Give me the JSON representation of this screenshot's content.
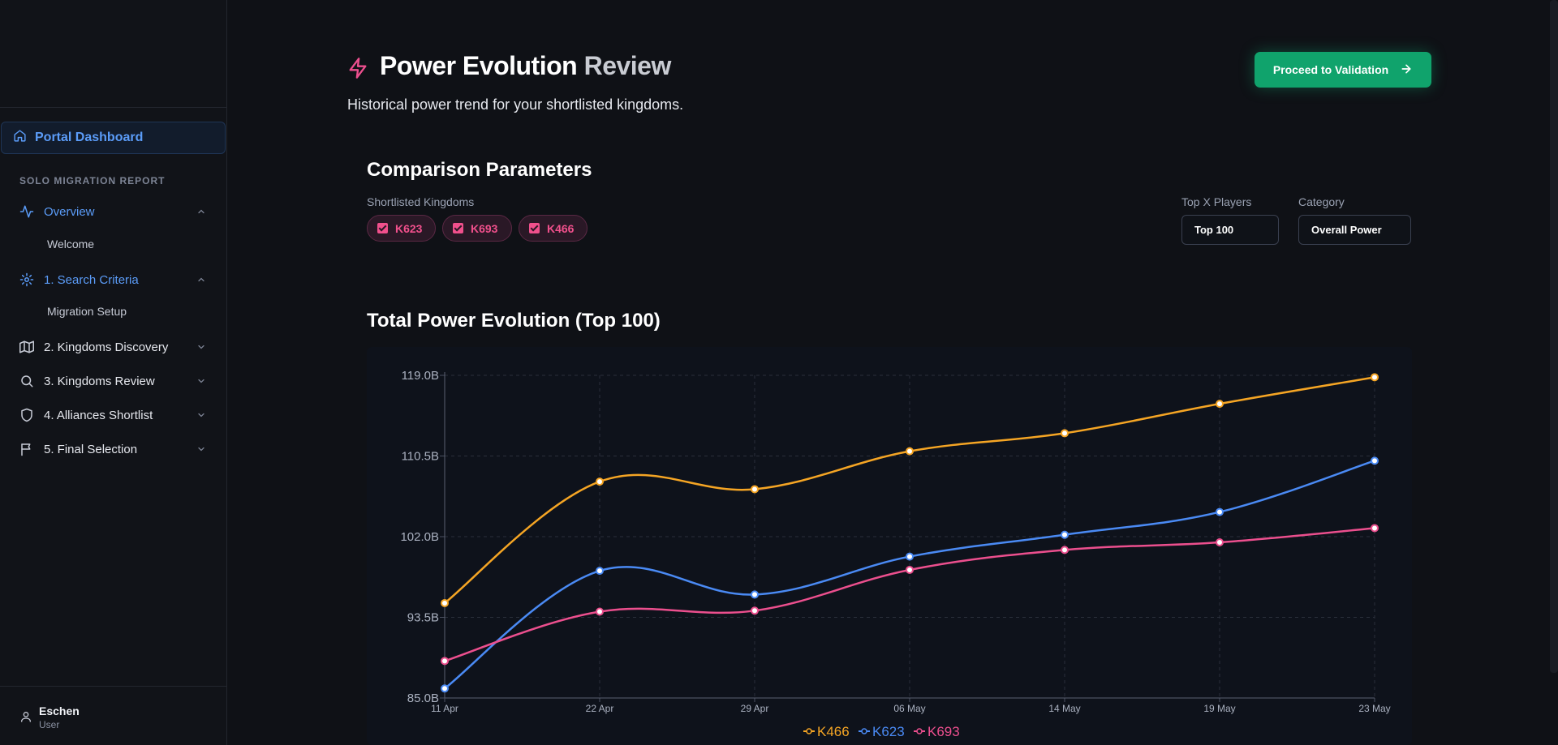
{
  "sidebar": {
    "portal_label": "Portal Dashboard",
    "section_label": "SOLO MIGRATION REPORT",
    "items": [
      {
        "label": "Overview",
        "sub": "Welcome"
      },
      {
        "label": "1. Search Criteria",
        "sub": "Migration Setup"
      },
      {
        "label": "2. Kingdoms Discovery"
      },
      {
        "label": "3. Kingdoms Review"
      },
      {
        "label": "4. Alliances Shortlist"
      },
      {
        "label": "5. Final Selection"
      }
    ],
    "user": {
      "name": "Eschen",
      "role": "User"
    }
  },
  "header": {
    "title_part1": "Power Evolution",
    "title_part2": "Review",
    "subtitle": "Historical power trend for your shortlisted kingdoms.",
    "cta_label": "Proceed to Validation"
  },
  "params": {
    "title": "Comparison Parameters",
    "shortlist_label": "Shortlisted Kingdoms",
    "chips": [
      "K623",
      "K693",
      "K466"
    ],
    "top_label": "Top X Players",
    "top_value": "Top 100",
    "category_label": "Category",
    "category_value": "Overall Power"
  },
  "colors": {
    "accent": "#5b9cf8",
    "cta": "#10a36c",
    "k466": "#f5a524",
    "k623": "#4a8af4",
    "k693": "#ec4f8e"
  },
  "chart_data": {
    "type": "line",
    "title": "Total Power Evolution (Top 100)",
    "categories": [
      "11 Apr",
      "22 Apr",
      "29 Apr",
      "06 May",
      "14 May",
      "19 May",
      "23 May"
    ],
    "y_tick_labels": [
      "85.0B",
      "93.5B",
      "102.0B",
      "110.5B",
      "119.0B"
    ],
    "ylim": [
      85.0,
      119.0
    ],
    "grid": true,
    "legend_position": "bottom",
    "series": [
      {
        "name": "K466",
        "values": [
          95.0,
          107.8,
          107.0,
          111.0,
          112.9,
          116.0,
          118.8
        ]
      },
      {
        "name": "K623",
        "values": [
          86.0,
          98.4,
          95.9,
          99.9,
          102.2,
          104.6,
          110.0
        ]
      },
      {
        "name": "K693",
        "values": [
          88.9,
          94.1,
          94.2,
          98.5,
          100.6,
          101.4,
          102.9
        ]
      }
    ]
  }
}
